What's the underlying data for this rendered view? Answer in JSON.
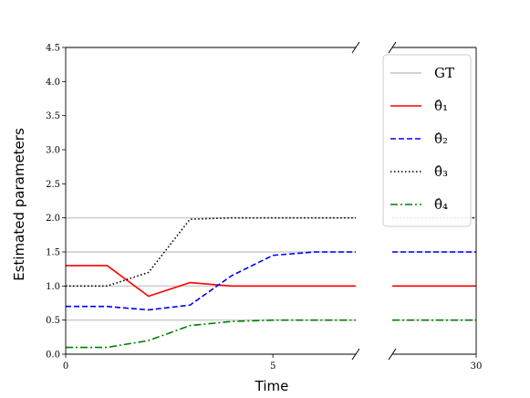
{
  "chart_data": {
    "type": "line",
    "title": "",
    "xlabel": "Time",
    "ylabel": "Estimated parameters",
    "ylim": [
      0,
      4.5
    ],
    "yticks": [
      "0.0",
      "0.5",
      "1.0",
      "1.5",
      "2.0",
      "2.5",
      "3.0",
      "3.5",
      "4.0",
      "4.5"
    ],
    "broken_x_axis": true,
    "left_panel": {
      "xlim": [
        0,
        7
      ],
      "xticks": [
        "0",
        "5"
      ]
    },
    "right_panel": {
      "xlim": [
        26,
        30
      ],
      "xticks": [
        "30"
      ]
    },
    "legend": {
      "location": "upper-right"
    },
    "ground_truth": {
      "label": "GT",
      "values": [
        2.0,
        1.5,
        1.0,
        0.5
      ],
      "color": "#cccccc"
    },
    "series": [
      {
        "name": "θ̂₁",
        "color": "#ff0000",
        "style": "solid",
        "x": [
          0,
          1,
          2,
          3,
          4,
          5,
          6,
          7,
          26,
          30
        ],
        "values": [
          1.3,
          1.3,
          0.85,
          1.05,
          1.0,
          1.0,
          1.0,
          1.0,
          1.0,
          1.0
        ]
      },
      {
        "name": "θ̂₂",
        "color": "#0000ff",
        "style": "dashed",
        "x": [
          0,
          1,
          2,
          3,
          4,
          5,
          6,
          7,
          26,
          30
        ],
        "values": [
          0.7,
          0.7,
          0.65,
          0.72,
          1.15,
          1.45,
          1.5,
          1.5,
          1.5,
          1.5
        ]
      },
      {
        "name": "θ̂₃",
        "color": "#000000",
        "style": "dotted",
        "x": [
          0,
          1,
          2,
          3,
          4,
          5,
          6,
          7,
          26,
          30
        ],
        "values": [
          1.0,
          1.0,
          1.2,
          1.98,
          2.0,
          2.0,
          2.0,
          2.0,
          2.0,
          2.0
        ]
      },
      {
        "name": "θ̂₄",
        "color": "#008000",
        "style": "dashdot",
        "x": [
          0,
          1,
          2,
          3,
          4,
          5,
          6,
          7,
          26,
          30
        ],
        "values": [
          0.1,
          0.1,
          0.2,
          0.42,
          0.48,
          0.5,
          0.5,
          0.5,
          0.5,
          0.5
        ]
      }
    ]
  }
}
